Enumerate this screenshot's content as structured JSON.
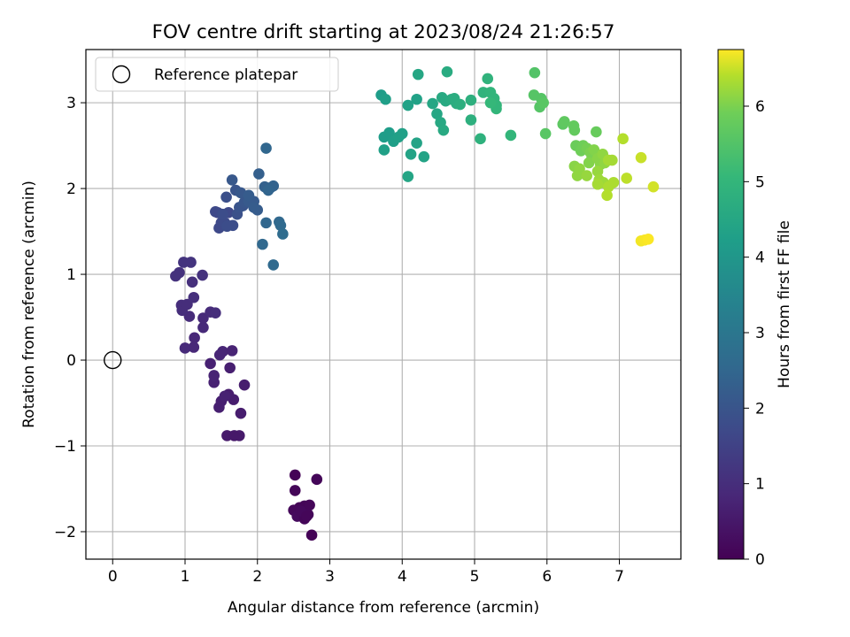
{
  "chart_data": {
    "type": "scatter",
    "title": "FOV centre drift starting at 2023/08/24 21:26:57",
    "xlabel": "Angular distance from reference (arcmin)",
    "ylabel": "Rotation from reference (arcmin)",
    "xlim": [
      -0.37,
      7.85
    ],
    "ylim": [
      -2.32,
      3.62
    ],
    "xticks": [
      "0",
      "1",
      "2",
      "3",
      "4",
      "5",
      "6",
      "7"
    ],
    "yticks": [
      "−2",
      "−1",
      "0",
      "1",
      "2",
      "3"
    ],
    "grid": true,
    "legend": {
      "placement": "top-left",
      "entries": [
        "Reference platepar"
      ]
    },
    "reference_point": {
      "x": 0,
      "y": 0
    },
    "colorbar": {
      "label": "Hours from first FF file",
      "min": 0,
      "max": 6.75,
      "ticks": [
        "0",
        "1",
        "2",
        "3",
        "4",
        "5",
        "6"
      ],
      "colormap": "viridis"
    },
    "points": [
      [
        2.52,
        -1.34,
        0.05
      ],
      [
        2.82,
        -1.39,
        0.1
      ],
      [
        2.52,
        -1.52,
        0.1
      ],
      [
        2.58,
        -1.72,
        0.08
      ],
      [
        2.65,
        -1.7,
        0.1
      ],
      [
        2.72,
        -1.69,
        0.12
      ],
      [
        2.5,
        -1.75,
        0.15
      ],
      [
        2.62,
        -1.78,
        0.1
      ],
      [
        2.7,
        -1.8,
        0.15
      ],
      [
        2.55,
        -1.82,
        0.2
      ],
      [
        2.65,
        -1.85,
        0.1
      ],
      [
        2.75,
        -2.04,
        0.05
      ],
      [
        2.6,
        -1.76,
        0.18
      ],
      [
        2.68,
        -1.82,
        0.12
      ],
      [
        1.58,
        -0.88,
        0.55
      ],
      [
        1.75,
        -0.88,
        0.55
      ],
      [
        1.68,
        -0.88,
        0.5
      ],
      [
        1.77,
        -0.62,
        0.6
      ],
      [
        1.47,
        -0.55,
        0.65
      ],
      [
        1.5,
        -0.48,
        0.65
      ],
      [
        1.67,
        -0.46,
        0.6
      ],
      [
        1.6,
        -0.4,
        0.6
      ],
      [
        1.55,
        -0.42,
        0.7
      ],
      [
        1.82,
        -0.29,
        0.6
      ],
      [
        1.4,
        -0.26,
        0.7
      ],
      [
        1.4,
        -0.18,
        0.75
      ],
      [
        1.35,
        -0.04,
        0.7
      ],
      [
        1.62,
        -0.09,
        0.65
      ],
      [
        1.48,
        0.06,
        0.8
      ],
      [
        1.52,
        0.1,
        0.8
      ],
      [
        1.65,
        0.11,
        0.75
      ],
      [
        1.12,
        0.15,
        0.85
      ],
      [
        1.0,
        0.14,
        0.9
      ],
      [
        1.13,
        0.26,
        0.85
      ],
      [
        1.25,
        0.38,
        0.9
      ],
      [
        1.06,
        0.51,
        0.95
      ],
      [
        1.25,
        0.49,
        0.9
      ],
      [
        1.35,
        0.56,
        0.95
      ],
      [
        1.42,
        0.55,
        1.0
      ],
      [
        0.96,
        0.58,
        1.0
      ],
      [
        0.95,
        0.64,
        1.0
      ],
      [
        1.03,
        0.65,
        1.0
      ],
      [
        1.12,
        0.73,
        1.05
      ],
      [
        1.1,
        0.91,
        1.05
      ],
      [
        0.87,
        0.98,
        1.1
      ],
      [
        0.92,
        1.02,
        1.1
      ],
      [
        1.24,
        0.99,
        1.1
      ],
      [
        0.98,
        1.14,
        1.15
      ],
      [
        1.08,
        1.14,
        1.15
      ],
      [
        1.45,
        1.72,
        1.6
      ],
      [
        1.42,
        1.73,
        1.7
      ],
      [
        1.6,
        1.72,
        1.7
      ],
      [
        1.5,
        1.6,
        1.7
      ],
      [
        1.47,
        1.54,
        1.7
      ],
      [
        1.55,
        1.6,
        1.75
      ],
      [
        1.66,
        1.57,
        1.8
      ],
      [
        1.58,
        1.56,
        1.8
      ],
      [
        1.52,
        1.7,
        1.8
      ],
      [
        1.57,
        1.9,
        1.85
      ],
      [
        1.72,
        1.7,
        1.9
      ],
      [
        1.75,
        1.78,
        1.95
      ],
      [
        1.8,
        1.8,
        2.0
      ],
      [
        1.7,
        1.98,
        2.0
      ],
      [
        1.82,
        1.84,
        2.05
      ],
      [
        1.65,
        2.1,
        2.1
      ],
      [
        1.77,
        1.95,
        2.1
      ],
      [
        1.88,
        1.85,
        2.15
      ],
      [
        1.95,
        1.85,
        2.15
      ],
      [
        1.95,
        1.78,
        2.2
      ],
      [
        2.0,
        1.75,
        2.2
      ],
      [
        1.88,
        1.92,
        2.2
      ],
      [
        2.02,
        2.17,
        2.3
      ],
      [
        2.1,
        2.02,
        2.35
      ],
      [
        2.18,
        2.01,
        2.4
      ],
      [
        2.22,
        2.03,
        2.4
      ],
      [
        2.15,
        1.98,
        2.45
      ],
      [
        2.12,
        2.47,
        2.5
      ],
      [
        2.12,
        1.6,
        2.5
      ],
      [
        2.3,
        1.61,
        2.55
      ],
      [
        2.32,
        1.57,
        2.6
      ],
      [
        2.35,
        1.47,
        2.65
      ],
      [
        2.07,
        1.35,
        2.55
      ],
      [
        2.22,
        1.11,
        2.6
      ],
      [
        3.71,
        3.09,
        4.2
      ],
      [
        3.77,
        3.04,
        4.25
      ],
      [
        3.75,
        2.6,
        4.2
      ],
      [
        3.82,
        2.65,
        4.2
      ],
      [
        3.88,
        2.55,
        4.25
      ],
      [
        3.75,
        2.45,
        4.3
      ],
      [
        3.95,
        2.6,
        4.3
      ],
      [
        4.0,
        2.64,
        4.3
      ],
      [
        4.08,
        2.97,
        4.35
      ],
      [
        4.2,
        3.04,
        4.35
      ],
      [
        4.12,
        2.4,
        4.4
      ],
      [
        4.2,
        2.53,
        4.4
      ],
      [
        4.3,
        2.37,
        4.4
      ],
      [
        4.08,
        2.14,
        4.45
      ],
      [
        4.22,
        3.33,
        4.5
      ],
      [
        4.42,
        2.99,
        4.5
      ],
      [
        4.48,
        2.87,
        4.5
      ],
      [
        4.53,
        2.77,
        4.55
      ],
      [
        4.57,
        2.68,
        4.6
      ],
      [
        4.55,
        3.06,
        4.6
      ],
      [
        4.6,
        3.02,
        4.6
      ],
      [
        4.62,
        3.36,
        4.65
      ],
      [
        4.68,
        3.04,
        4.65
      ],
      [
        4.72,
        3.05,
        4.7
      ],
      [
        4.75,
        2.99,
        4.7
      ],
      [
        4.8,
        2.98,
        4.75
      ],
      [
        4.95,
        2.8,
        4.8
      ],
      [
        4.95,
        3.03,
        4.8
      ],
      [
        5.08,
        2.58,
        4.85
      ],
      [
        5.12,
        3.12,
        4.9
      ],
      [
        5.18,
        3.28,
        4.9
      ],
      [
        5.22,
        3.12,
        4.95
      ],
      [
        5.27,
        3.05,
        4.95
      ],
      [
        5.3,
        2.97,
        5.0
      ],
      [
        5.3,
        2.93,
        5.0
      ],
      [
        5.5,
        2.62,
        5.0
      ],
      [
        5.22,
        3.0,
        5.05
      ],
      [
        5.83,
        3.35,
        5.5
      ],
      [
        5.82,
        3.09,
        5.55
      ],
      [
        5.92,
        3.05,
        5.55
      ],
      [
        5.9,
        2.95,
        5.55
      ],
      [
        5.95,
        3.0,
        5.6
      ],
      [
        5.98,
        2.64,
        5.6
      ],
      [
        6.22,
        2.75,
        5.65
      ],
      [
        6.24,
        2.78,
        5.7
      ],
      [
        6.37,
        2.73,
        5.75
      ],
      [
        6.38,
        2.68,
        5.75
      ],
      [
        6.68,
        2.66,
        5.8
      ],
      [
        6.4,
        2.5,
        5.85
      ],
      [
        6.47,
        2.44,
        5.9
      ],
      [
        6.5,
        2.5,
        5.9
      ],
      [
        6.55,
        2.47,
        5.95
      ],
      [
        6.6,
        2.42,
        6.0
      ],
      [
        6.62,
        2.35,
        6.0
      ],
      [
        6.58,
        2.3,
        6.05
      ],
      [
        6.65,
        2.45,
        6.05
      ],
      [
        6.7,
        2.35,
        6.1
      ],
      [
        6.74,
        2.28,
        6.1
      ],
      [
        6.77,
        2.4,
        6.15
      ],
      [
        6.8,
        2.3,
        6.15
      ],
      [
        6.38,
        2.26,
        6.1
      ],
      [
        6.45,
        2.23,
        6.15
      ],
      [
        6.42,
        2.15,
        6.15
      ],
      [
        6.55,
        2.15,
        6.2
      ],
      [
        6.7,
        2.2,
        6.2
      ],
      [
        6.72,
        2.1,
        6.25
      ],
      [
        6.78,
        2.07,
        6.25
      ],
      [
        6.7,
        2.05,
        6.3
      ],
      [
        6.85,
        2.33,
        6.3
      ],
      [
        6.9,
        2.33,
        6.3
      ],
      [
        6.92,
        2.07,
        6.35
      ],
      [
        6.85,
        2.02,
        6.35
      ],
      [
        6.83,
        1.92,
        6.4
      ],
      [
        7.05,
        2.58,
        6.4
      ],
      [
        7.1,
        2.12,
        6.45
      ],
      [
        7.3,
        2.36,
        6.5
      ],
      [
        7.47,
        2.02,
        6.55
      ],
      [
        7.3,
        1.39,
        6.7
      ],
      [
        7.35,
        1.4,
        6.72
      ],
      [
        7.4,
        1.41,
        6.74
      ]
    ]
  }
}
